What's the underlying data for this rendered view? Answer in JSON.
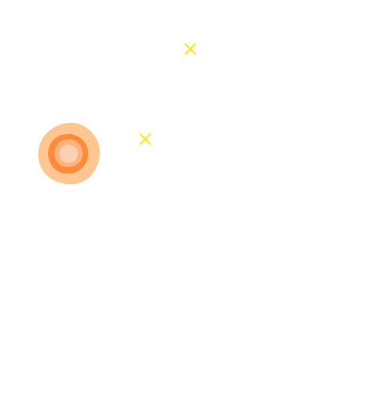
{
  "scene": {
    "background": "#ffffff",
    "blob": {
      "name": "player-blob",
      "outer_color": "#fec792",
      "ring_color": "#ff8a3a",
      "mid_color": "#ffb27d",
      "core_color": "#fdd0b2"
    },
    "markers": [
      {
        "name": "yellow-x-marker-1",
        "icon": "x-mark-icon",
        "color": "#ffe833"
      },
      {
        "name": "yellow-x-marker-2",
        "icon": "x-mark-icon",
        "color": "#ffe833"
      }
    ]
  }
}
